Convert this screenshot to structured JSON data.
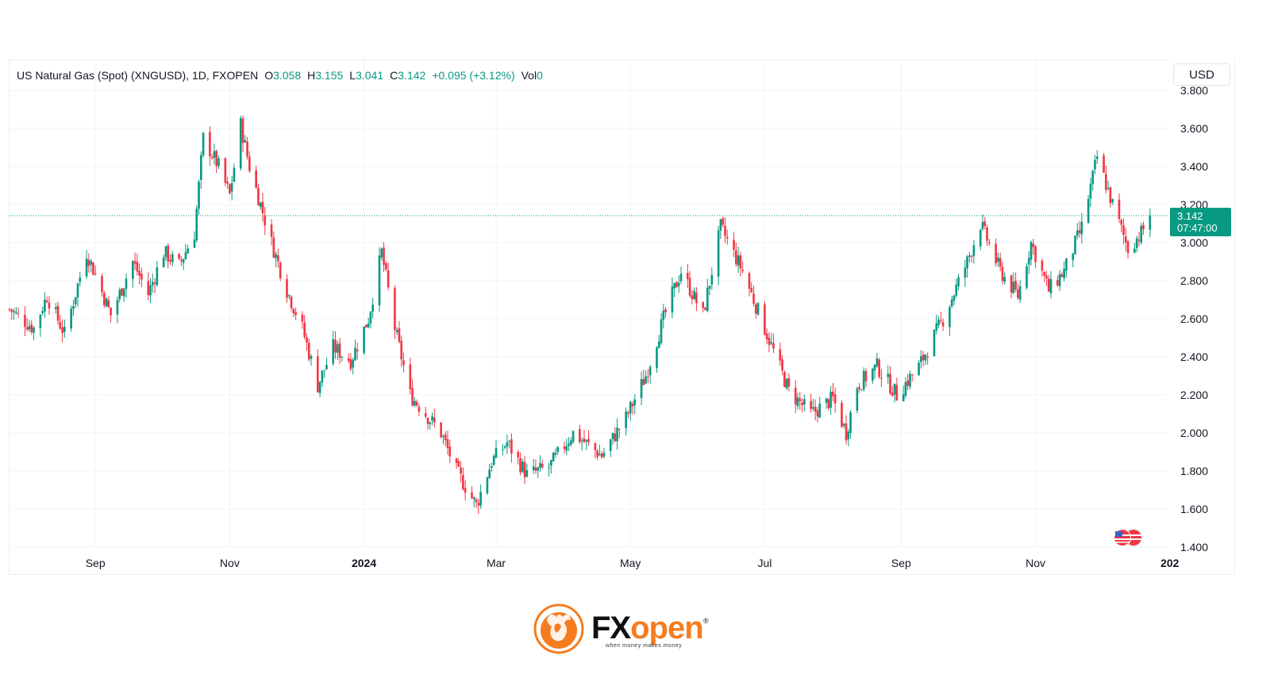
{
  "header": {
    "symbol": "US Natural Gas (Spot) (XNGUSD), 1D, FXOPEN",
    "open_label": "O",
    "open": "3.058",
    "high_label": "H",
    "high": "3.155",
    "low_label": "L",
    "low": "3.041",
    "close_label": "C",
    "close": "3.142",
    "change": "+0.095 (+3.12%)",
    "vol_label": "Vol",
    "vol": "0"
  },
  "currency_button": "USD",
  "price_label": {
    "price": "3.142",
    "countdown": "07:47:00"
  },
  "brand": {
    "name_a": "FX",
    "name_b": "open",
    "tagline": "when money makes money",
    "reg": "®"
  },
  "colors": {
    "up": "#089981",
    "down": "#f23645",
    "grid": "#f0f3fa",
    "accent": "#f57c1f"
  },
  "chart_data": {
    "type": "candlestick",
    "title": "US Natural Gas (Spot) (XNGUSD), 1D, FXOPEN",
    "ylim": [
      1.4,
      3.8
    ],
    "y_ticks": [
      "1.400",
      "1.600",
      "1.800",
      "2.000",
      "2.200",
      "2.400",
      "2.600",
      "2.800",
      "3.000",
      "3.200",
      "3.400",
      "3.600",
      "3.800"
    ],
    "x_ticks": [
      {
        "label": "Sep",
        "month": "2023-09",
        "bold": false
      },
      {
        "label": "Nov",
        "month": "2023-11",
        "bold": false
      },
      {
        "label": "2024",
        "month": "2024-01",
        "bold": true
      },
      {
        "label": "Mar",
        "month": "2024-03",
        "bold": false
      },
      {
        "label": "May",
        "month": "2024-05",
        "bold": false
      },
      {
        "label": "Jul",
        "month": "2024-07",
        "bold": false
      },
      {
        "label": "Sep",
        "month": "2024-09",
        "bold": false
      },
      {
        "label": "Nov",
        "month": "2024-11",
        "bold": false
      },
      {
        "label": "202",
        "month": "2025-01",
        "bold": true
      }
    ],
    "current_price": 3.142,
    "x_range": [
      "2023-07-24",
      "2024-12-31"
    ],
    "series_path": [
      [
        "2023-07-24",
        2.65
      ],
      [
        "2023-08-04",
        2.55
      ],
      [
        "2023-08-10",
        2.72
      ],
      [
        "2023-08-18",
        2.52
      ],
      [
        "2023-08-28",
        2.95
      ],
      [
        "2023-09-08",
        2.62
      ],
      [
        "2023-09-18",
        2.9
      ],
      [
        "2023-09-25",
        2.73
      ],
      [
        "2023-10-02",
        2.95
      ],
      [
        "2023-10-09",
        2.88
      ],
      [
        "2023-10-16",
        3.05
      ],
      [
        "2023-10-20",
        3.55
      ],
      [
        "2023-10-27",
        3.4
      ],
      [
        "2023-11-01",
        3.25
      ],
      [
        "2023-11-06",
        3.62
      ],
      [
        "2023-11-10",
        3.4
      ],
      [
        "2023-11-15",
        3.2
      ],
      [
        "2023-11-20",
        3.0
      ],
      [
        "2023-11-27",
        2.75
      ],
      [
        "2023-12-04",
        2.55
      ],
      [
        "2023-12-11",
        2.25
      ],
      [
        "2023-12-18",
        2.45
      ],
      [
        "2023-12-26",
        2.38
      ],
      [
        "2024-01-03",
        2.6
      ],
      [
        "2024-01-09",
        2.95
      ],
      [
        "2024-01-15",
        2.55
      ],
      [
        "2024-01-22",
        2.2
      ],
      [
        "2024-01-29",
        2.1
      ],
      [
        "2024-02-05",
        2.0
      ],
      [
        "2024-02-12",
        1.8
      ],
      [
        "2024-02-21",
        1.62
      ],
      [
        "2024-02-28",
        1.85
      ],
      [
        "2024-03-06",
        1.95
      ],
      [
        "2024-03-15",
        1.78
      ],
      [
        "2024-03-25",
        1.82
      ],
      [
        "2024-04-05",
        2.0
      ],
      [
        "2024-04-18",
        1.88
      ],
      [
        "2024-04-29",
        2.08
      ],
      [
        "2024-05-08",
        2.3
      ],
      [
        "2024-05-16",
        2.6
      ],
      [
        "2024-05-24",
        2.85
      ],
      [
        "2024-06-03",
        2.62
      ],
      [
        "2024-06-11",
        3.08
      ],
      [
        "2024-06-21",
        2.85
      ],
      [
        "2024-07-01",
        2.55
      ],
      [
        "2024-07-12",
        2.22
      ],
      [
        "2024-07-22",
        2.1
      ],
      [
        "2024-08-01",
        2.18
      ],
      [
        "2024-08-07",
        2.0
      ],
      [
        "2024-08-12",
        2.25
      ],
      [
        "2024-08-21",
        2.35
      ],
      [
        "2024-08-30",
        2.2
      ],
      [
        "2024-09-09",
        2.35
      ],
      [
        "2024-09-20",
        2.6
      ],
      [
        "2024-10-01",
        2.9
      ],
      [
        "2024-10-07",
        3.1
      ],
      [
        "2024-10-16",
        2.85
      ],
      [
        "2024-10-24",
        2.72
      ],
      [
        "2024-10-30",
        3.0
      ],
      [
        "2024-11-07",
        2.75
      ],
      [
        "2024-11-14",
        2.85
      ],
      [
        "2024-11-22",
        3.08
      ],
      [
        "2024-11-29",
        3.45
      ],
      [
        "2024-12-06",
        3.2
      ],
      [
        "2024-12-13",
        2.97
      ],
      [
        "2024-12-19",
        3.05
      ],
      [
        "2024-12-23",
        3.14
      ]
    ]
  }
}
